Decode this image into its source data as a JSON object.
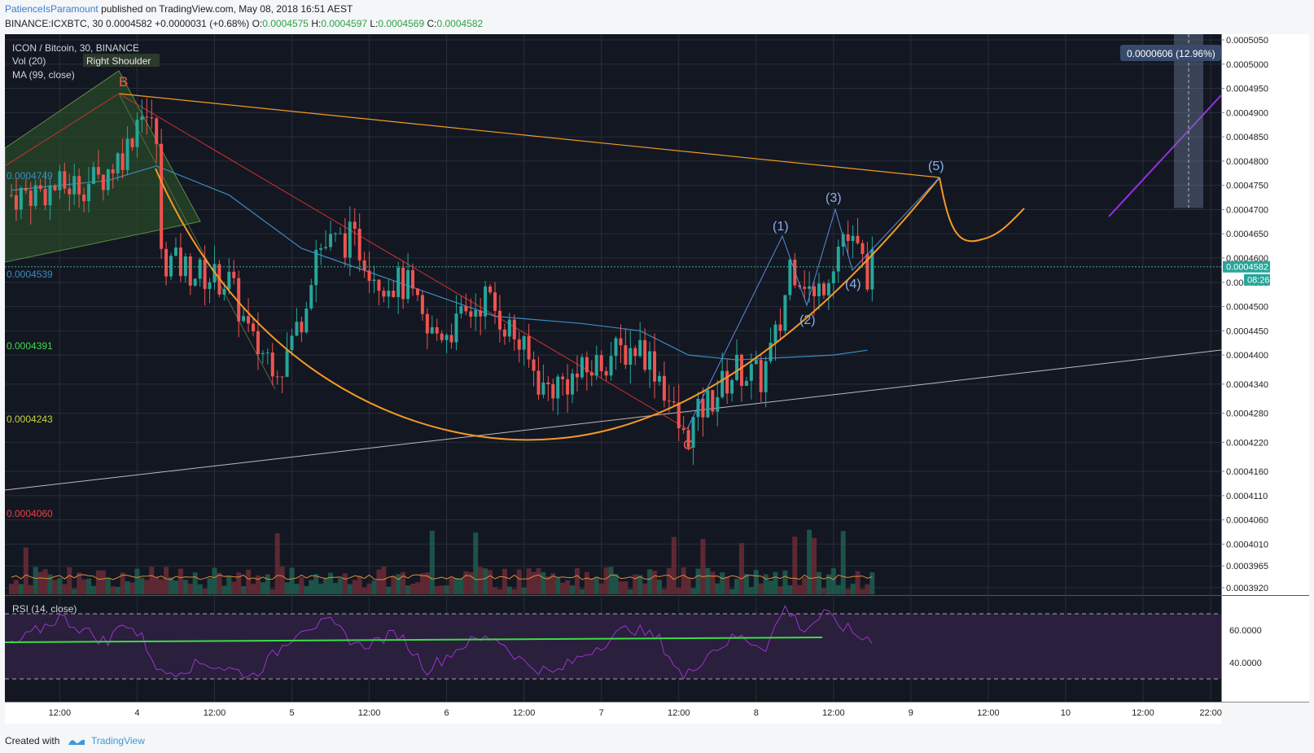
{
  "header": {
    "author": "PatienceIsParamount",
    "published": "published on TradingView.com, May 08, 2018 16:51 AEST",
    "symbol": "BINANCE:ICXBTC, 30",
    "last": "0.0004582",
    "change": "+0.0000031 (+0.68%)",
    "o_label": "O:",
    "o": "0.0004575",
    "h_label": "H:",
    "h": "0.0004597",
    "l_label": "L:",
    "l": "0.0004569",
    "c_label": "C:",
    "c": "0.0004582"
  },
  "legend": {
    "title": "ICON / Bitcoin, 30, BINANCE",
    "vol": "Vol (20)",
    "ma": "MA (99, close)",
    "right_shoulder": "Right Shoulder",
    "rsi": "RSI (14, close)"
  },
  "annotations": {
    "B": "B",
    "C": "C",
    "w1": "(1)",
    "w2": "(2)",
    "w3": "(3)",
    "w4": "(4)",
    "w5": "(5)",
    "measure": "0.0000606 (12.96%)",
    "last_price": "0.0004582",
    "countdown": "08:26",
    "fib_0": "0.0004749",
    "fib_1": "0.0004539",
    "fib_2": "0.0004391",
    "fib_3": "0.0004243",
    "fib_4": "0.0004060"
  },
  "colors": {
    "background": "#131722",
    "up": "#26a69a",
    "down": "#ef5350",
    "ma": "#3b8cc4",
    "cup": "#f59a23",
    "rsi_line": "#9b34c9",
    "rsi_band": "#2a1f3d",
    "rsi_support": "#3ddc46",
    "wave": "#5b8dd9",
    "purple_line": "#9a2ee8"
  },
  "chart_data": {
    "type": "candlestick",
    "ylim": [
      0.000391,
      0.0005055
    ],
    "y_ticks": [
      "0.0005050",
      "0.0005000",
      "0.0004950",
      "0.0004900",
      "0.0004850",
      "0.0004800",
      "0.0004750",
      "0.0004700",
      "0.0004650",
      "0.0004600",
      "0.0004550",
      "0.0004500",
      "0.0004450",
      "0.0004400",
      "0.0004340",
      "0.0004280",
      "0.0004220",
      "0.0004160",
      "0.0004110",
      "0.0004060",
      "0.0004010",
      "0.0003965",
      "0.0003920"
    ],
    "y_tick_values": [
      0.000505,
      0.0005,
      0.000495,
      0.00049,
      0.000485,
      0.00048,
      0.000475,
      0.00047,
      0.000465,
      0.00046,
      0.000455,
      0.00045,
      0.000445,
      0.00044,
      0.000434,
      0.000428,
      0.000422,
      0.000416,
      0.000411,
      0.000406,
      0.000401,
      0.0003965,
      0.000392
    ],
    "x_ticks": [
      "12:00",
      "4",
      "12:00",
      "5",
      "12:00",
      "6",
      "12:00",
      "7",
      "12:00",
      "8",
      "12:00",
      "9",
      "12:00",
      "10",
      "12:00",
      "22:00"
    ],
    "x_tick_bars": [
      10,
      26,
      42,
      58,
      74,
      90,
      106,
      122,
      138,
      154,
      170,
      186,
      202,
      218,
      234,
      248
    ],
    "price_path": [
      [
        0,
        0.000473
      ],
      [
        10,
        0.0004745
      ],
      [
        18,
        0.000476
      ],
      [
        24,
        0.000483
      ],
      [
        27,
        0.000492
      ],
      [
        30,
        0.000484
      ],
      [
        31,
        0.00046
      ],
      [
        38,
        0.000457
      ],
      [
        45,
        0.000455
      ],
      [
        50,
        0.000442
      ],
      [
        56,
        0.000438
      ],
      [
        60,
        0.000448
      ],
      [
        63,
        0.000462
      ],
      [
        70,
        0.000464
      ],
      [
        72,
        0.000462
      ],
      [
        76,
        0.000456
      ],
      [
        82,
        0.000454
      ],
      [
        86,
        0.000444
      ],
      [
        92,
        0.000446
      ],
      [
        98,
        0.000452
      ],
      [
        104,
        0.000444
      ],
      [
        110,
        0.000433
      ],
      [
        118,
        0.000436
      ],
      [
        124,
        0.00044
      ],
      [
        130,
        0.000442
      ],
      [
        134,
        0.000436
      ],
      [
        139,
        0.0004225
      ],
      [
        143,
        0.000429
      ],
      [
        150,
        0.000437
      ],
      [
        155,
        0.000435
      ],
      [
        159,
        0.000446
      ],
      [
        161,
        0.000459
      ],
      [
        164,
        0.000456
      ],
      [
        166,
        0.000451
      ],
      [
        170,
        0.00046
      ],
      [
        172,
        0.000465
      ],
      [
        175,
        0.000461
      ],
      [
        177,
        0.000457
      ],
      [
        178,
        0.0004582
      ]
    ],
    "ma99_path": [
      [
        0,
        0.000474
      ],
      [
        20,
        0.000476
      ],
      [
        30,
        0.000479
      ],
      [
        45,
        0.000473
      ],
      [
        60,
        0.000462
      ],
      [
        80,
        0.000455
      ],
      [
        100,
        0.000448
      ],
      [
        118,
        0.0004465
      ],
      [
        130,
        0.000445
      ],
      [
        140,
        0.00044
      ],
      [
        150,
        0.000439
      ],
      [
        160,
        0.0004395
      ],
      [
        170,
        0.00044
      ],
      [
        177,
        0.000441
      ]
    ],
    "rsi_ylim": [
      30,
      75
    ],
    "rsi_ticks": [
      "60.0000",
      "40.0000"
    ],
    "rsi_tick_values": [
      60,
      40
    ],
    "rsi_bands": [
      70,
      30
    ],
    "rsi_path": [
      [
        0,
        50
      ],
      [
        10,
        68
      ],
      [
        20,
        52
      ],
      [
        23,
        66
      ],
      [
        27,
        55
      ],
      [
        31,
        33
      ],
      [
        40,
        40
      ],
      [
        50,
        32
      ],
      [
        60,
        62
      ],
      [
        66,
        64
      ],
      [
        72,
        50
      ],
      [
        80,
        58
      ],
      [
        86,
        36
      ],
      [
        94,
        52
      ],
      [
        100,
        56
      ],
      [
        106,
        40
      ],
      [
        112,
        33
      ],
      [
        120,
        48
      ],
      [
        128,
        62
      ],
      [
        134,
        54
      ],
      [
        139,
        30
      ],
      [
        144,
        46
      ],
      [
        150,
        56
      ],
      [
        156,
        50
      ],
      [
        160,
        74
      ],
      [
        164,
        60
      ],
      [
        168,
        70
      ],
      [
        172,
        62
      ],
      [
        176,
        55
      ]
    ]
  }
}
